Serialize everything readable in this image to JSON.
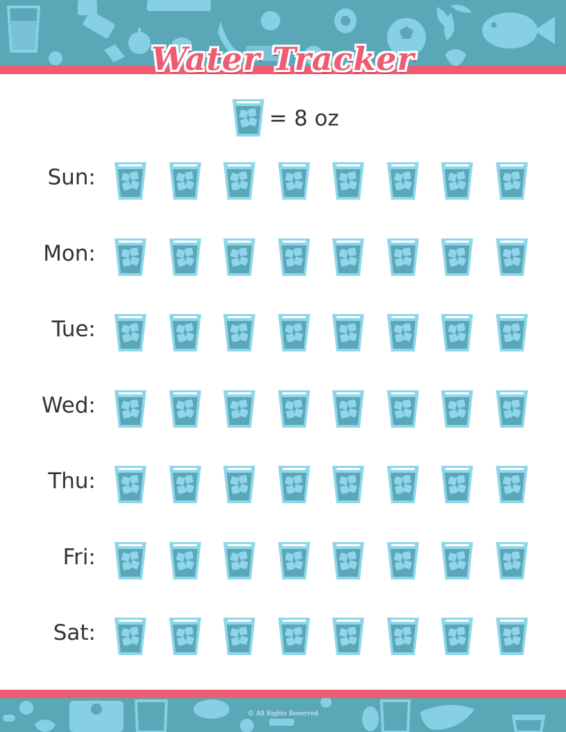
{
  "colors": {
    "banner_teal": "#5aa7b8",
    "stripe_pink": "#ef5b72",
    "glass_light": "#8fd6ea",
    "glass_water": "#5aa7b8",
    "text_dark": "#333333"
  },
  "header": {
    "title": "Water Tracker"
  },
  "legend": {
    "icon": "water-glass-icon",
    "text": "= 8 oz"
  },
  "tracker": {
    "glasses_per_day": 8,
    "days": [
      {
        "label": "Sun:"
      },
      {
        "label": "Mon:"
      },
      {
        "label": "Tue:"
      },
      {
        "label": "Wed:"
      },
      {
        "label": "Thu:"
      },
      {
        "label": "Fri:"
      },
      {
        "label": "Sat:"
      }
    ]
  },
  "footer": {
    "copyright": "© All Rights Reserved"
  }
}
